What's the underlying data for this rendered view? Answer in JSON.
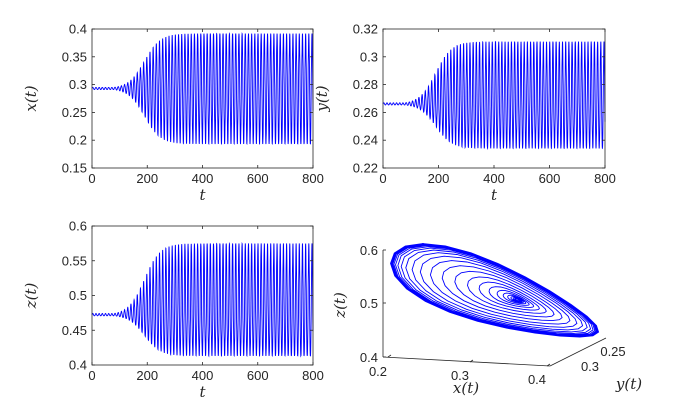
{
  "chart_data": [
    {
      "type": "line",
      "id": "x",
      "title": "",
      "xlabel": "t",
      "ylabel": "x(t)",
      "xlim": [
        0,
        800
      ],
      "ylim": [
        0.15,
        0.4
      ],
      "xticks": [
        "0",
        "200",
        "400",
        "600",
        "800"
      ],
      "yticks": [
        "0.15",
        "0.2",
        "0.25",
        "0.3",
        "0.35",
        "0.4"
      ],
      "equilibrium": 0.293,
      "limit_min": 0.193,
      "limit_max": 0.392,
      "growth_midpoint_t": 190,
      "period": 11.5,
      "color": "#0000ff"
    },
    {
      "type": "line",
      "id": "y",
      "title": "",
      "xlabel": "t",
      "ylabel": "y(t)",
      "xlim": [
        0,
        800
      ],
      "ylim": [
        0.22,
        0.32
      ],
      "xticks": [
        "0",
        "200",
        "400",
        "600",
        "800"
      ],
      "yticks": [
        "0.22",
        "0.24",
        "0.26",
        "0.28",
        "0.3",
        "0.32"
      ],
      "equilibrium": 0.266,
      "limit_min": 0.234,
      "limit_max": 0.311,
      "growth_midpoint_t": 190,
      "period": 11.5,
      "color": "#0000ff"
    },
    {
      "type": "line",
      "id": "z",
      "title": "",
      "xlabel": "t",
      "ylabel": "z(t)",
      "xlim": [
        0,
        800
      ],
      "ylim": [
        0.4,
        0.6
      ],
      "xticks": [
        "0",
        "200",
        "400",
        "600",
        "800"
      ],
      "yticks": [
        "0.4",
        "0.45",
        "0.5",
        "0.55",
        "0.6"
      ],
      "equilibrium": 0.472,
      "limit_min": 0.413,
      "limit_max": 0.575,
      "growth_midpoint_t": 190,
      "period": 11.5,
      "color": "#0000ff"
    },
    {
      "type": "line",
      "id": "phase",
      "title": "",
      "xlabel": "x(t)",
      "ylabel": "y(t)",
      "zlabel": "z(t)",
      "xlim": [
        0.2,
        0.4
      ],
      "ylim": [
        0.25,
        0.3
      ],
      "zlim": [
        0.4,
        0.6
      ],
      "xticks": [
        "0.2",
        "0.3",
        "0.4"
      ],
      "yticks": [
        "0.3",
        "0.25"
      ],
      "zticks": [
        "0.4",
        "0.5",
        "0.6"
      ],
      "color": "#0000ff"
    }
  ]
}
